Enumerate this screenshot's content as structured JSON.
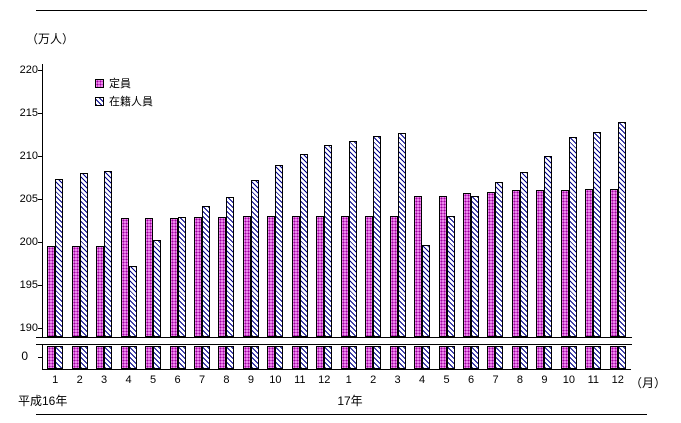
{
  "chart_data": {
    "type": "bar",
    "title": "",
    "unit_label": "（万人）",
    "month_unit_label": "（月）",
    "zero_label": "0",
    "y_ticks": [
      220,
      215,
      210,
      205,
      200,
      195,
      190
    ],
    "y_axis": {
      "max": 220,
      "min_display": 190,
      "axis_break": true,
      "grid": false
    },
    "legend_position": "top-left",
    "categories": [
      "1",
      "2",
      "3",
      "4",
      "5",
      "6",
      "7",
      "8",
      "9",
      "10",
      "11",
      "12",
      "1",
      "2",
      "3",
      "4",
      "5",
      "6",
      "7",
      "8",
      "9",
      "10",
      "11",
      "12"
    ],
    "year_groups": [
      {
        "label": "平成16年",
        "start_month_index": 0,
        "months": 12
      },
      {
        "label": "17年",
        "start_month_index": 12,
        "months": 12
      }
    ],
    "series": [
      {
        "name": "定員",
        "pattern": "pink-dots",
        "fill_color": "#ee86ee",
        "dot_color": "#a000a0",
        "values": [
          199.5,
          199.5,
          199.5,
          202.8,
          202.8,
          202.8,
          202.9,
          202.9,
          203.0,
          203.0,
          203.0,
          203.0,
          203.0,
          203.0,
          203.0,
          205.3,
          205.4,
          205.7,
          205.8,
          206.0,
          206.0,
          206.0,
          206.2,
          206.2
        ]
      },
      {
        "name": "在籍人員",
        "pattern": "blue-diagonal-hatch",
        "fill_color": "#ffffff",
        "hatch_color": "#00008b",
        "values": [
          207.3,
          208.0,
          208.3,
          197.2,
          200.2,
          202.9,
          204.2,
          205.2,
          207.2,
          209.0,
          210.2,
          211.3,
          211.7,
          212.3,
          212.7,
          199.7,
          203.0,
          205.3,
          207.0,
          208.2,
          210.0,
          212.2,
          212.8,
          214.0
        ]
      }
    ]
  }
}
